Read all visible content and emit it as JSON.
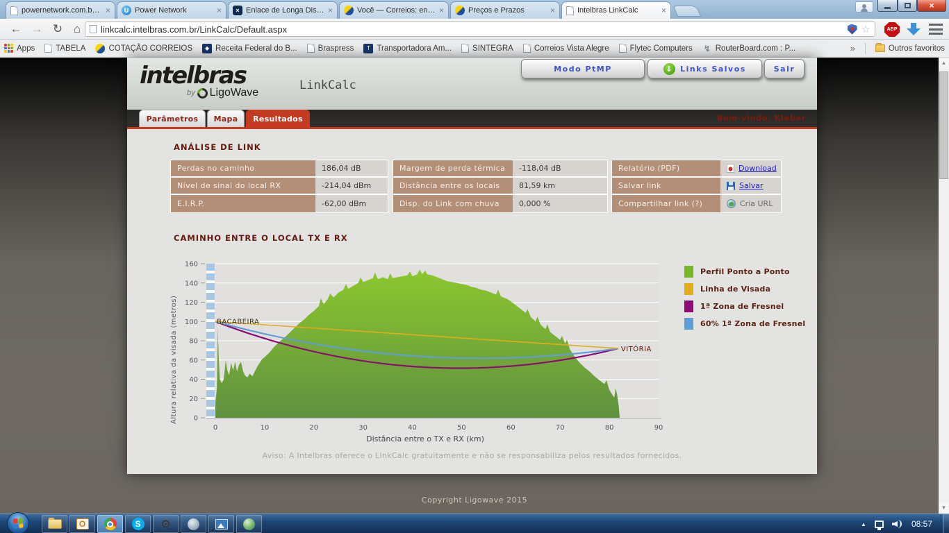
{
  "browser": {
    "tabs": [
      {
        "title": "powernetwork.com.br/adr",
        "icon": "page"
      },
      {
        "title": "Power Network",
        "icon": "power"
      },
      {
        "title": "Enlace de Longa Distancia",
        "icon": "enlace"
      },
      {
        "title": "Você — Correios: encome",
        "icon": "correios"
      },
      {
        "title": "Preços e Prazos",
        "icon": "correios"
      },
      {
        "title": "Intelbras LinkCalc",
        "icon": "page",
        "active": true
      }
    ],
    "close_glyph": "×",
    "icons": {
      "back": "←",
      "forward": "→",
      "reload": "↻",
      "home": "⌂",
      "star": "☆",
      "tray_arrow": "▲",
      "scroll_up": "▲",
      "scroll_down": "▼"
    },
    "url": "linkcalc.intelbras.com.br/LinkCalc/Default.aspx",
    "abp_badge": "ABP",
    "bookmarks": [
      {
        "label": "Apps",
        "icon": "apps"
      },
      {
        "label": "TABELA",
        "icon": "page"
      },
      {
        "label": "COTAÇÃO CORREIOS",
        "icon": "correios"
      },
      {
        "label": "Receita Federal do B...",
        "icon": "navy"
      },
      {
        "label": "Braspress",
        "icon": "page"
      },
      {
        "label": "Transportadora Am...",
        "icon": "navy"
      },
      {
        "label": "SINTEGRA",
        "icon": "page"
      },
      {
        "label": "Correios Vista Alegre",
        "icon": "page"
      },
      {
        "label": "Flytec Computers",
        "icon": "page"
      },
      {
        "label": "RouterBoard.com : P...",
        "icon": "router"
      }
    ],
    "bookmarks_overflow": "»",
    "other_bookmarks": "Outros favoritos"
  },
  "app": {
    "brand": {
      "name": "intelbras",
      "by": "by",
      "partner": "LigoWave"
    },
    "title": "LinkCalc",
    "buttons": [
      {
        "label": "Modo PtMP"
      },
      {
        "label": "Links Salvos",
        "icon_glyph": "↓"
      },
      {
        "label": "Sair"
      }
    ],
    "tabs": [
      {
        "label": "Parâmetros"
      },
      {
        "label": "Mapa"
      },
      {
        "label": "Resultados",
        "active": true
      }
    ],
    "welcome": "Bem-vindo, Kleber"
  },
  "analysis": {
    "heading": "ANÁLISE DE LINK",
    "metrics1": [
      {
        "label": "Perdas no caminho",
        "value": "186,04 dB"
      },
      {
        "label": "Nível de sinal do local RX",
        "value": "-214,04 dBm"
      },
      {
        "label": "E.I.R.P.",
        "value": "-62,00 dBm"
      }
    ],
    "metrics2": [
      {
        "label": "Margem de perda térmica",
        "value": "-118,04 dB"
      },
      {
        "label": "Distância entre os locais",
        "value": "81,59 km"
      },
      {
        "label": "Disp. do Link com chuva",
        "value": "0,000 %"
      }
    ],
    "actions": [
      {
        "label": "Relatório (PDF)",
        "link": "Download",
        "icon": "pdf"
      },
      {
        "label": "Salvar link",
        "link": "Salvar",
        "icon": "disk"
      },
      {
        "label": "Compartilhar link  (?)",
        "link": "Cria URL",
        "icon": "globe"
      }
    ]
  },
  "chart_data": {
    "type": "area",
    "title": "CAMINHO ENTRE O LOCAL TX E RX",
    "xlabel": "Distância entre o TX e RX (km)",
    "ylabel": "Altura relativa da visada (metros)",
    "xlim": [
      0,
      90
    ],
    "ylim": [
      0,
      160
    ],
    "x_ticks": [
      0,
      10,
      20,
      30,
      40,
      50,
      60,
      70,
      80,
      90
    ],
    "y_ticks": [
      0,
      20,
      40,
      60,
      80,
      100,
      120,
      140,
      160
    ],
    "grid": true,
    "legend_position": "right",
    "tx_label": "BACABEIRA",
    "rx_label": "VITÓRIA",
    "terrain_gradient": [
      "#8cc72e",
      "#5f9140"
    ],
    "terrain": [
      [
        0,
        16
      ],
      [
        0.3,
        30
      ],
      [
        0.5,
        94
      ],
      [
        0.7,
        60
      ],
      [
        0.9,
        40
      ],
      [
        1.3,
        36
      ],
      [
        1.7,
        40
      ],
      [
        2.1,
        60
      ],
      [
        2.4,
        50
      ],
      [
        2.8,
        44
      ],
      [
        3.2,
        57
      ],
      [
        3.6,
        49
      ],
      [
        4,
        58
      ],
      [
        4.4,
        48
      ],
      [
        4.8,
        55
      ],
      [
        5.2,
        58
      ],
      [
        5.6,
        49
      ],
      [
        6,
        44
      ],
      [
        6.5,
        42
      ],
      [
        7,
        46
      ],
      [
        7.5,
        43
      ],
      [
        8,
        48
      ],
      [
        8.5,
        53
      ],
      [
        9,
        57
      ],
      [
        9.5,
        61
      ],
      [
        10,
        63
      ],
      [
        11,
        68
      ],
      [
        12,
        74
      ],
      [
        13,
        79
      ],
      [
        14,
        83
      ],
      [
        15,
        88
      ],
      [
        16,
        93
      ],
      [
        17,
        98
      ],
      [
        18,
        102
      ],
      [
        19,
        107
      ],
      [
        20,
        111
      ],
      [
        21,
        116
      ],
      [
        21.4,
        124
      ],
      [
        22,
        118
      ],
      [
        22.8,
        123
      ],
      [
        23.3,
        129
      ],
      [
        24,
        125
      ],
      [
        25,
        130
      ],
      [
        26,
        133
      ],
      [
        26.5,
        139
      ],
      [
        27,
        134
      ],
      [
        28,
        137
      ],
      [
        29,
        140
      ],
      [
        29.5,
        146
      ],
      [
        30,
        141
      ],
      [
        31,
        143
      ],
      [
        32,
        145
      ],
      [
        32.4,
        151
      ],
      [
        33,
        144
      ],
      [
        34,
        146
      ],
      [
        35,
        144
      ],
      [
        35.5,
        150
      ],
      [
        36,
        145
      ],
      [
        37,
        146
      ],
      [
        38,
        147
      ],
      [
        39,
        148
      ],
      [
        39.5,
        152
      ],
      [
        40,
        147
      ],
      [
        41,
        149
      ],
      [
        41.5,
        154
      ],
      [
        42,
        149
      ],
      [
        42.6,
        153
      ],
      [
        43,
        149
      ],
      [
        44,
        148
      ],
      [
        45,
        146
      ],
      [
        46,
        144
      ],
      [
        47,
        142
      ],
      [
        48,
        141
      ],
      [
        49,
        140
      ],
      [
        50,
        139
      ],
      [
        51,
        138
      ],
      [
        52,
        136
      ],
      [
        53,
        135
      ],
      [
        54,
        133
      ],
      [
        55,
        132
      ],
      [
        56,
        130
      ],
      [
        57,
        128
      ],
      [
        57.4,
        133
      ],
      [
        58,
        126
      ],
      [
        59,
        124
      ],
      [
        60,
        121
      ],
      [
        61,
        117
      ],
      [
        62,
        113
      ],
      [
        63,
        109
      ],
      [
        63.4,
        113
      ],
      [
        64,
        105
      ],
      [
        65,
        100
      ],
      [
        65.4,
        105
      ],
      [
        66,
        97
      ],
      [
        67,
        92
      ],
      [
        67.4,
        97
      ],
      [
        68,
        89
      ],
      [
        69,
        85
      ],
      [
        70,
        81
      ],
      [
        70.4,
        85
      ],
      [
        71,
        77
      ],
      [
        71.4,
        81
      ],
      [
        72,
        71
      ],
      [
        73,
        63
      ],
      [
        74,
        57
      ],
      [
        75,
        52
      ],
      [
        76,
        48
      ],
      [
        77,
        43
      ],
      [
        78,
        39
      ],
      [
        79,
        35
      ],
      [
        79.4,
        39
      ],
      [
        80,
        29
      ],
      [
        80.6,
        24
      ],
      [
        81,
        21
      ],
      [
        81.3,
        31
      ],
      [
        81.6,
        23
      ],
      [
        81.9,
        12
      ],
      [
        82.1,
        0
      ]
    ],
    "line_of_sight": {
      "x1": 0,
      "y1": 100,
      "x2": 81.8,
      "y2": 72
    },
    "fresnel1_sag": 33,
    "fresnel60_sag": 22,
    "legend": [
      {
        "label": "Perfil Ponto a Ponto",
        "color": "#76b82a"
      },
      {
        "label": "Linha de Visada",
        "color": "#e2ac1b"
      },
      {
        "label": "1ª Zona de Fresnel",
        "color": "#8d0b74"
      },
      {
        "label": "60% 1ª Zona de Fresnel",
        "color": "#5f9fd6"
      }
    ],
    "disclaimer": "Aviso: A Intelbras oferece o LinkCalc gratuitamente e não se responsabiliza pelos resultados fornecidos."
  },
  "footer": {
    "copyright": "Copyright Ligowave 2015"
  },
  "taskbar": {
    "clock": "08:57"
  }
}
